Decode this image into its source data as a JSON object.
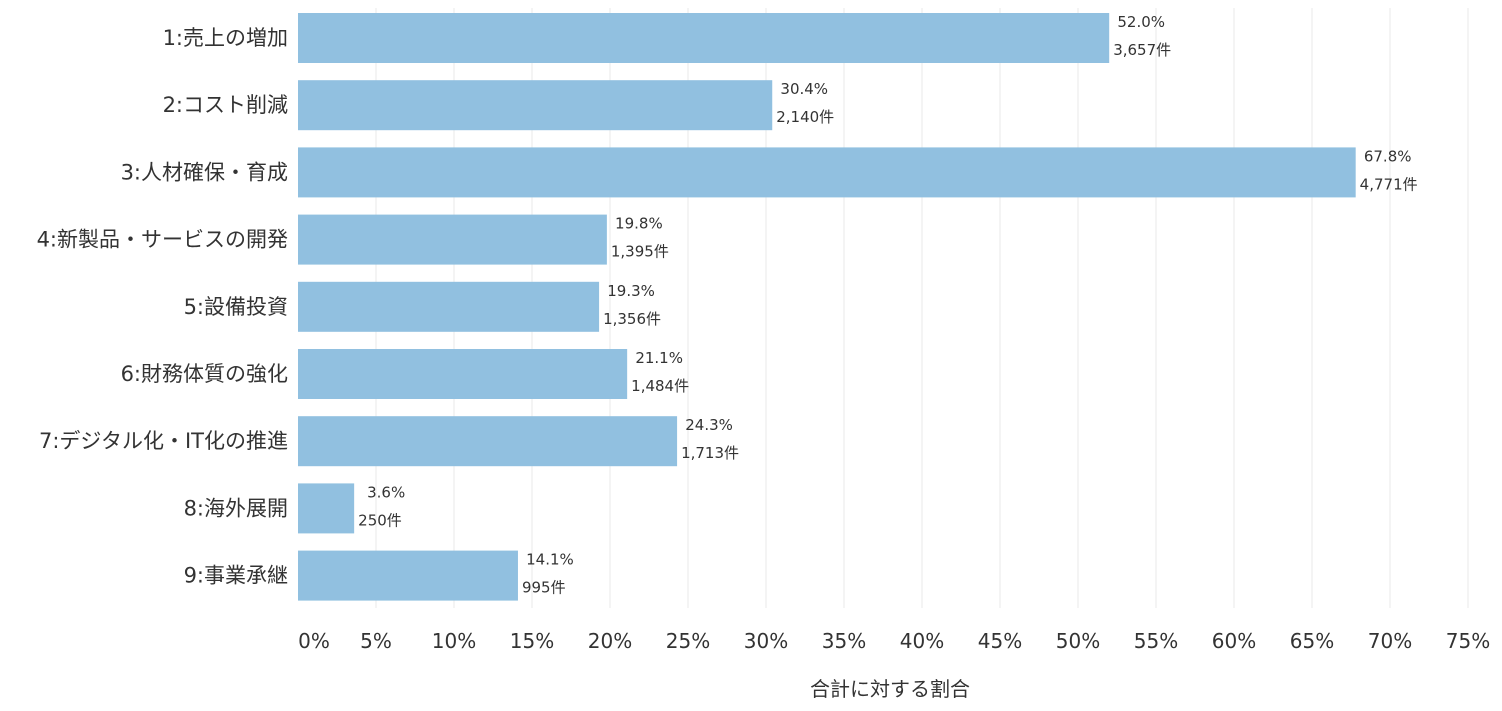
{
  "chart_data": {
    "type": "bar",
    "orientation": "horizontal",
    "categories": [
      "1:売上の増加",
      "2:コスト削減",
      "3:人材確保・育成",
      "4:新製品・サービスの開発",
      "5:設備投資",
      "6:財務体質の強化",
      "7:デジタル化・IT化の推進",
      "8:海外展開",
      "9:事業承継"
    ],
    "values": [
      52.0,
      30.4,
      67.8,
      19.8,
      19.3,
      21.1,
      24.3,
      3.6,
      14.1
    ],
    "value_labels": [
      "52.0%",
      "30.4%",
      "67.8%",
      "19.8%",
      "19.3%",
      "21.1%",
      "24.3%",
      "3.6%",
      "14.1%"
    ],
    "count_labels": [
      "3,657件",
      "2,140件",
      "4,771件",
      "1,395件",
      "1,356件",
      "1,484件",
      "1,713件",
      "250件",
      "995件"
    ],
    "xticks": [
      "0%",
      "5%",
      "10%",
      "15%",
      "20%",
      "25%",
      "30%",
      "35%",
      "40%",
      "45%",
      "50%",
      "55%",
      "60%",
      "65%",
      "70%",
      "75%"
    ],
    "xlim": [
      0,
      75
    ],
    "xlabel": "合計に対する割合",
    "ylabel": "",
    "title": "",
    "grid": "vertical",
    "bar_color": "#91c0e0"
  }
}
